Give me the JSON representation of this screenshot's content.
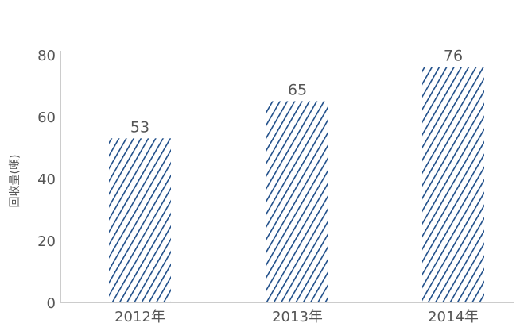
{
  "chart_data": {
    "type": "bar",
    "title": "",
    "xlabel": "",
    "ylabel": "回收量(噸)",
    "categories": [
      "2012年",
      "2013年",
      "2014年"
    ],
    "values": [
      53,
      65,
      76
    ],
    "ylim": [
      0,
      80
    ],
    "yticks": [
      0,
      20,
      40,
      60,
      80
    ],
    "grid": false,
    "bar_color": "#1f4e89",
    "bar_fill": "diagonal-hatch"
  }
}
